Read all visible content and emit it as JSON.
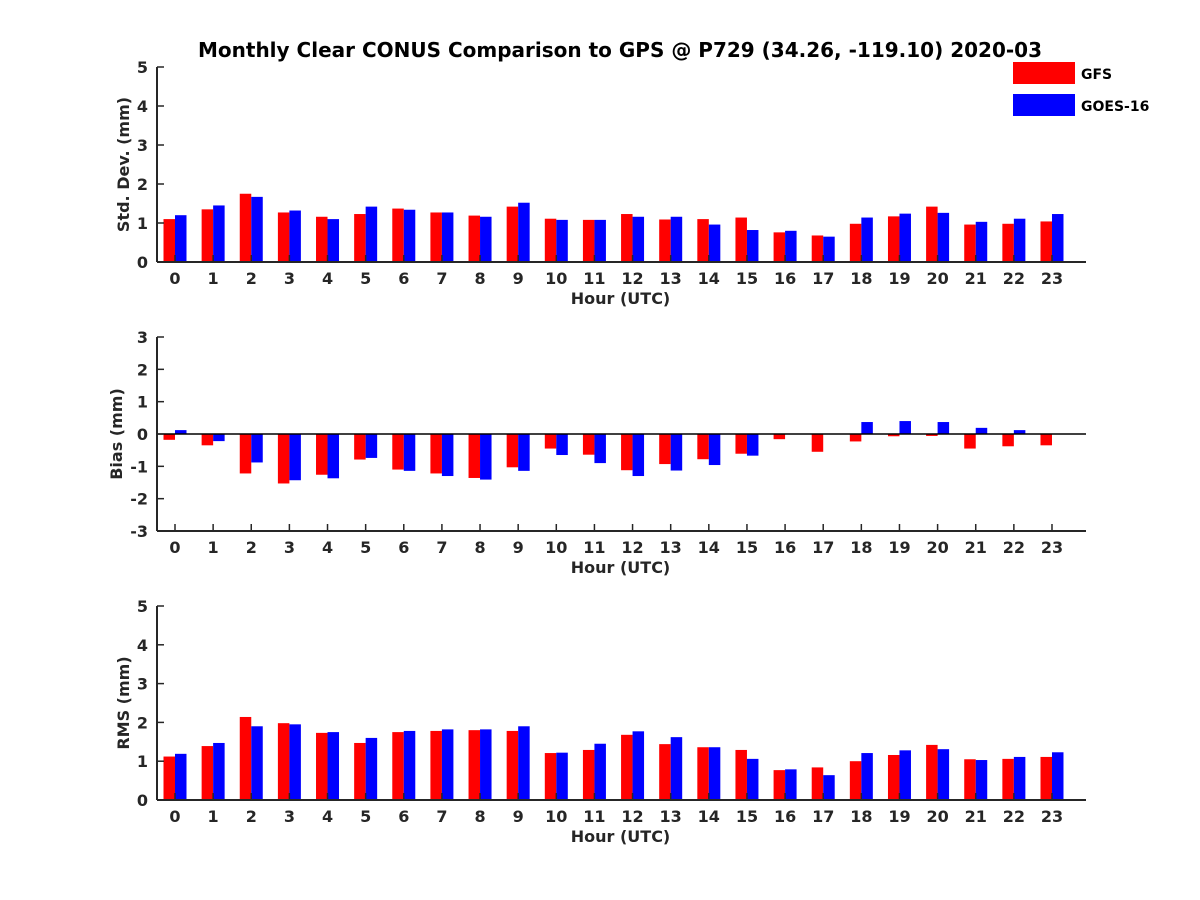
{
  "chart_data": {
    "title": "Monthly Clear CONUS Comparison to GPS @ P729 (34.26, -119.10) 2020-03",
    "legend": {
      "placement": "top-right",
      "entries": [
        {
          "name": "GFS",
          "color": "#ff0000"
        },
        {
          "name": "GOES-16",
          "color": "#0000ff"
        }
      ]
    },
    "panels": [
      {
        "type": "bar",
        "xlabel": "Hour (UTC)",
        "ylabel": "Std. Dev. (mm)",
        "ylim": [
          0,
          5
        ],
        "yticks": [
          "0",
          "1",
          "2",
          "3",
          "4",
          "5"
        ],
        "categories": [
          "0",
          "1",
          "2",
          "3",
          "4",
          "5",
          "6",
          "7",
          "8",
          "9",
          "10",
          "11",
          "12",
          "13",
          "14",
          "15",
          "16",
          "17",
          "18",
          "19",
          "20",
          "21",
          "22",
          "23"
        ],
        "series": [
          {
            "name": "GFS",
            "color": "#ff0000",
            "values": [
              1.1,
              1.35,
              1.75,
              1.27,
              1.16,
              1.23,
              1.37,
              1.27,
              1.19,
              1.42,
              1.11,
              1.08,
              1.23,
              1.09,
              1.1,
              1.14,
              0.76,
              0.68,
              0.98,
              1.17,
              1.42,
              0.96,
              0.98,
              1.04
            ]
          },
          {
            "name": "GOES-16",
            "color": "#0000ff",
            "values": [
              1.2,
              1.45,
              1.67,
              1.32,
              1.1,
              1.42,
              1.34,
              1.27,
              1.16,
              1.52,
              1.08,
              1.08,
              1.16,
              1.16,
              0.96,
              0.82,
              0.8,
              0.65,
              1.14,
              1.24,
              1.26,
              1.03,
              1.11,
              1.23
            ]
          }
        ]
      },
      {
        "type": "bar",
        "xlabel": "Hour (UTC)",
        "ylabel": "Bias (mm)",
        "ylim": [
          -3,
          3
        ],
        "yticks": [
          "-3",
          "-2",
          "-1",
          "0",
          "1",
          "2",
          "3"
        ],
        "zero_line": true,
        "categories": [
          "0",
          "1",
          "2",
          "3",
          "4",
          "5",
          "6",
          "7",
          "8",
          "9",
          "10",
          "11",
          "12",
          "13",
          "14",
          "15",
          "16",
          "17",
          "18",
          "19",
          "20",
          "21",
          "22",
          "23"
        ],
        "series": [
          {
            "name": "GFS",
            "color": "#ff0000",
            "values": [
              -0.18,
              -0.35,
              -1.22,
              -1.53,
              -1.26,
              -0.79,
              -1.1,
              -1.22,
              -1.36,
              -1.03,
              -0.45,
              -0.64,
              -1.12,
              -0.93,
              -0.78,
              -0.61,
              -0.16,
              -0.55,
              -0.23,
              -0.07,
              -0.06,
              -0.45,
              -0.38,
              -0.35
            ]
          },
          {
            "name": "GOES-16",
            "color": "#0000ff",
            "values": [
              0.12,
              -0.22,
              -0.88,
              -1.43,
              -1.37,
              -0.74,
              -1.14,
              -1.3,
              -1.41,
              -1.14,
              -0.65,
              -0.9,
              -1.3,
              -1.13,
              -0.96,
              -0.67,
              0.0,
              0.0,
              0.37,
              0.4,
              0.37,
              0.19,
              0.12,
              0.0
            ]
          }
        ]
      },
      {
        "type": "bar",
        "xlabel": "Hour (UTC)",
        "ylabel": "RMS (mm)",
        "ylim": [
          0,
          5
        ],
        "yticks": [
          "0",
          "1",
          "2",
          "3",
          "4",
          "5"
        ],
        "categories": [
          "0",
          "1",
          "2",
          "3",
          "4",
          "5",
          "6",
          "7",
          "8",
          "9",
          "10",
          "11",
          "12",
          "13",
          "14",
          "15",
          "16",
          "17",
          "18",
          "19",
          "20",
          "21",
          "22",
          "23"
        ],
        "series": [
          {
            "name": "GFS",
            "color": "#ff0000",
            "values": [
              1.12,
              1.39,
              2.14,
              1.98,
              1.73,
              1.47,
              1.75,
              1.78,
              1.8,
              1.78,
              1.21,
              1.29,
              1.68,
              1.44,
              1.36,
              1.29,
              0.77,
              0.84,
              1.0,
              1.16,
              1.42,
              1.05,
              1.06,
              1.11
            ]
          },
          {
            "name": "GOES-16",
            "color": "#0000ff",
            "values": [
              1.19,
              1.47,
              1.9,
              1.95,
              1.75,
              1.6,
              1.78,
              1.82,
              1.82,
              1.9,
              1.22,
              1.45,
              1.77,
              1.62,
              1.36,
              1.06,
              0.79,
              0.64,
              1.21,
              1.28,
              1.31,
              1.03,
              1.11,
              1.23
            ]
          }
        ]
      }
    ]
  }
}
